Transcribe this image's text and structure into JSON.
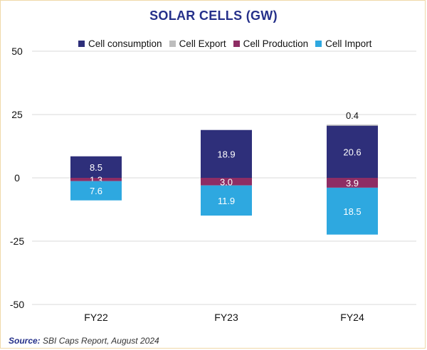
{
  "chart_data": {
    "type": "bar",
    "stacked": true,
    "title": "SOLAR CELLS (GW)",
    "categories": [
      "FY22",
      "FY23",
      "FY24"
    ],
    "ylim": [
      -50,
      50
    ],
    "yticks": [
      50,
      25,
      0,
      -25,
      -50
    ],
    "series": [
      {
        "name": "Cell consumption",
        "color": "#2e2f7a",
        "values": [
          8.5,
          18.9,
          20.6
        ],
        "labels": [
          "8.5",
          "18.9",
          "20.6"
        ]
      },
      {
        "name": "Cell Export",
        "color": "#bdbdbd",
        "values": [
          0,
          0,
          0.4
        ],
        "labels": [
          "",
          "",
          "0.4"
        ]
      },
      {
        "name": "Cell Production",
        "color": "#8e2d64",
        "values": [
          -1.3,
          -3.0,
          -3.9
        ],
        "labels": [
          "1.3",
          "3.0",
          "3.9"
        ]
      },
      {
        "name": "Cell Import",
        "color": "#2ea8e0",
        "values": [
          -7.6,
          -11.9,
          -18.5
        ],
        "labels": [
          "7.6",
          "11.9",
          "18.5"
        ]
      }
    ]
  },
  "source": {
    "label": "Source:",
    "text": " SBI Caps Report, August 2024"
  }
}
